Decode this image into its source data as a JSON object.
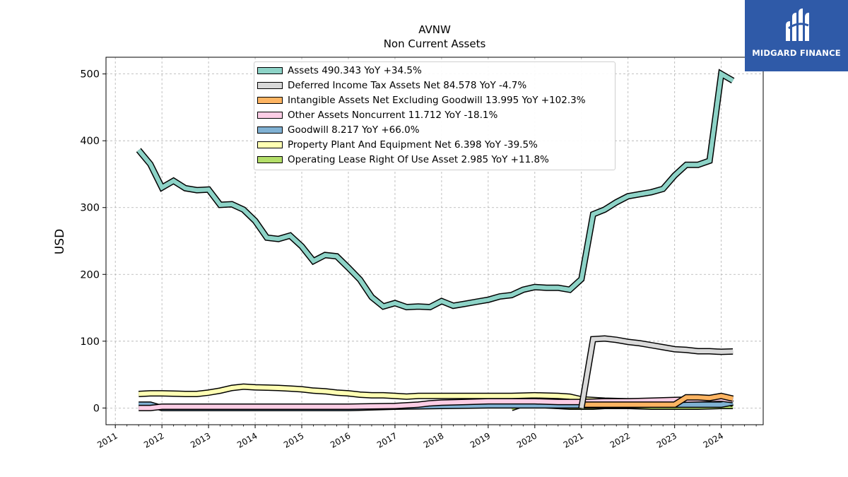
{
  "header": {
    "ticker": "AVNW",
    "subtitle": "Non Current  Assets"
  },
  "brand": {
    "name": "MIDGARD FINANCE",
    "color": "#2f5aa8"
  },
  "chart_data": {
    "type": "line",
    "ylabel": "USD",
    "xlim": [
      2010.8,
      2024.9
    ],
    "ylim": [
      -25,
      525
    ],
    "yticks": [
      0,
      100,
      200,
      300,
      400,
      500
    ],
    "xticks": [
      "2011",
      "2012",
      "2013",
      "2014",
      "2015",
      "2016",
      "2017",
      "2018",
      "2019",
      "2020",
      "2021",
      "2022",
      "2023",
      "2024"
    ],
    "grid": true,
    "legend_position": "top-center",
    "series": [
      {
        "name": "Assets",
        "legend": "Assets  490.343 YoY +34.5%",
        "color": "#8dd3c7",
        "x": [
          2011.5,
          2011.75,
          2012.0,
          2012.25,
          2012.5,
          2012.75,
          2013.0,
          2013.25,
          2013.5,
          2013.75,
          2014.0,
          2014.25,
          2014.5,
          2014.75,
          2015.0,
          2015.25,
          2015.5,
          2015.75,
          2016.0,
          2016.25,
          2016.5,
          2016.75,
          2017.0,
          2017.25,
          2017.5,
          2017.75,
          2018.0,
          2018.25,
          2018.5,
          2018.75,
          2019.0,
          2019.25,
          2019.5,
          2019.75,
          2020.0,
          2020.25,
          2020.5,
          2020.75,
          2021.0,
          2021.25,
          2021.5,
          2021.75,
          2022.0,
          2022.25,
          2022.5,
          2022.75,
          2023.0,
          2023.25,
          2023.5,
          2023.75,
          2024.0,
          2024.25
        ],
        "y": [
          386,
          365,
          330,
          340,
          329,
          326,
          327,
          304,
          305,
          297,
          280,
          255,
          253,
          258,
          242,
          220,
          229,
          227,
          210,
          192,
          166,
          152,
          157,
          151,
          152,
          151,
          160,
          153,
          156,
          159,
          162,
          167,
          169,
          177,
          181,
          180,
          180,
          177,
          193,
          290,
          297,
          308,
          317,
          320,
          323,
          328,
          348,
          364,
          364,
          370,
          500,
          490
        ]
      },
      {
        "name": "Deferred Income Tax Assets Net",
        "legend": "Deferred Income Tax Assets Net  84.578 YoY -4.7%",
        "color": "#d9d9d9",
        "x": [
          2021.0,
          2021.25,
          2021.5,
          2021.75,
          2022.0,
          2022.25,
          2022.5,
          2022.75,
          2023.0,
          2023.25,
          2023.5,
          2023.75,
          2024.0,
          2024.25
        ],
        "y": [
          0,
          103,
          104,
          102,
          99,
          97,
          94,
          91,
          88,
          87,
          85,
          85,
          84,
          84.6
        ]
      },
      {
        "name": "Intangible Assets Net Excluding Goodwill",
        "legend": "Intangible Assets Net Excluding Goodwill  13.995 YoY +102.3%",
        "color": "#fdb462",
        "x": [
          2021.0,
          2021.5,
          2022.0,
          2022.5,
          2023.0,
          2023.25,
          2023.5,
          2023.75,
          2024.0,
          2024.25
        ],
        "y": [
          5,
          5,
          5,
          5,
          5,
          16,
          16,
          15,
          18,
          14
        ]
      },
      {
        "name": "Other Assets Noncurrent",
        "legend": "Other Assets Noncurrent  11.712 YoY -18.1%",
        "color": "#fccde5",
        "x": [
          2011.5,
          2011.75,
          2012.0,
          2013.0,
          2014.0,
          2015.0,
          2016.0,
          2017.0,
          2017.5,
          2017.75,
          2018.0,
          2018.5,
          2019.0,
          2019.5,
          2020.0,
          2020.5,
          2021.0,
          2021.5,
          2022.0,
          2022.5,
          2023.0,
          2023.5,
          2024.0,
          2024.25
        ],
        "y": [
          0,
          0,
          2,
          2,
          2,
          2,
          2,
          3,
          5,
          7,
          8,
          9,
          10,
          10,
          10,
          9,
          9,
          10,
          10,
          11,
          12,
          13,
          14,
          11.7
        ]
      },
      {
        "name": "Goodwill",
        "legend": "Goodwill  8.217 YoY +66.0%",
        "color": "#80b1d3",
        "x": [
          2011.5,
          2011.75,
          2012.0,
          2013.0,
          2014.0,
          2015.0,
          2016.0,
          2017.0,
          2018.0,
          2019.0,
          2019.5,
          2020.0,
          2020.5,
          2021.0,
          2021.5,
          2022.0,
          2022.5,
          2023.0,
          2023.5,
          2024.0,
          2024.25
        ],
        "y": [
          5,
          5,
          0,
          0,
          0,
          0,
          0,
          2,
          3,
          4,
          4,
          4,
          4,
          4,
          4,
          4,
          5,
          5,
          5,
          5,
          8.2
        ]
      },
      {
        "name": "Property Plant And Equipment Net",
        "legend": "Property Plant And Equipment Net  6.398 YoY -39.5%",
        "color": "#ffffb3",
        "x": [
          2011.5,
          2011.75,
          2012.0,
          2012.5,
          2012.75,
          2013.0,
          2013.25,
          2013.5,
          2013.75,
          2014.0,
          2014.5,
          2014.75,
          2015.0,
          2015.25,
          2015.5,
          2015.75,
          2016.0,
          2016.25,
          2016.5,
          2016.75,
          2017.0,
          2017.25,
          2017.5,
          2018.0,
          2018.5,
          2019.0,
          2019.5,
          2020.0,
          2020.5,
          2020.75,
          2021.0,
          2021.5,
          2022.0,
          2022.5,
          2023.0,
          2023.5,
          2024.0,
          2024.25
        ],
        "y": [
          21,
          22,
          22,
          21,
          21,
          23,
          26,
          30,
          32,
          31,
          30,
          29,
          28,
          26,
          25,
          23,
          22,
          20,
          19,
          19,
          18,
          17,
          18,
          18,
          18,
          18,
          18,
          19,
          18,
          17,
          13,
          11,
          10,
          10,
          10,
          10,
          10,
          6.4
        ]
      },
      {
        "name": "Operating Lease Right Of Use Asset",
        "legend": "Operating Lease Right Of Use Asset  2.985 YoY +11.8%",
        "color": "#b3de69",
        "x": [
          2019.5,
          2019.75,
          2020.0,
          2020.25,
          2020.5,
          2020.75,
          2021.0,
          2021.25,
          2021.5,
          2022.0,
          2022.5,
          2023.0,
          2023.5,
          2024.0,
          2024.25
        ],
        "y": [
          0,
          6,
          5,
          4,
          3,
          2,
          2,
          2,
          3,
          3,
          2,
          2,
          2,
          3,
          3
        ]
      }
    ]
  }
}
